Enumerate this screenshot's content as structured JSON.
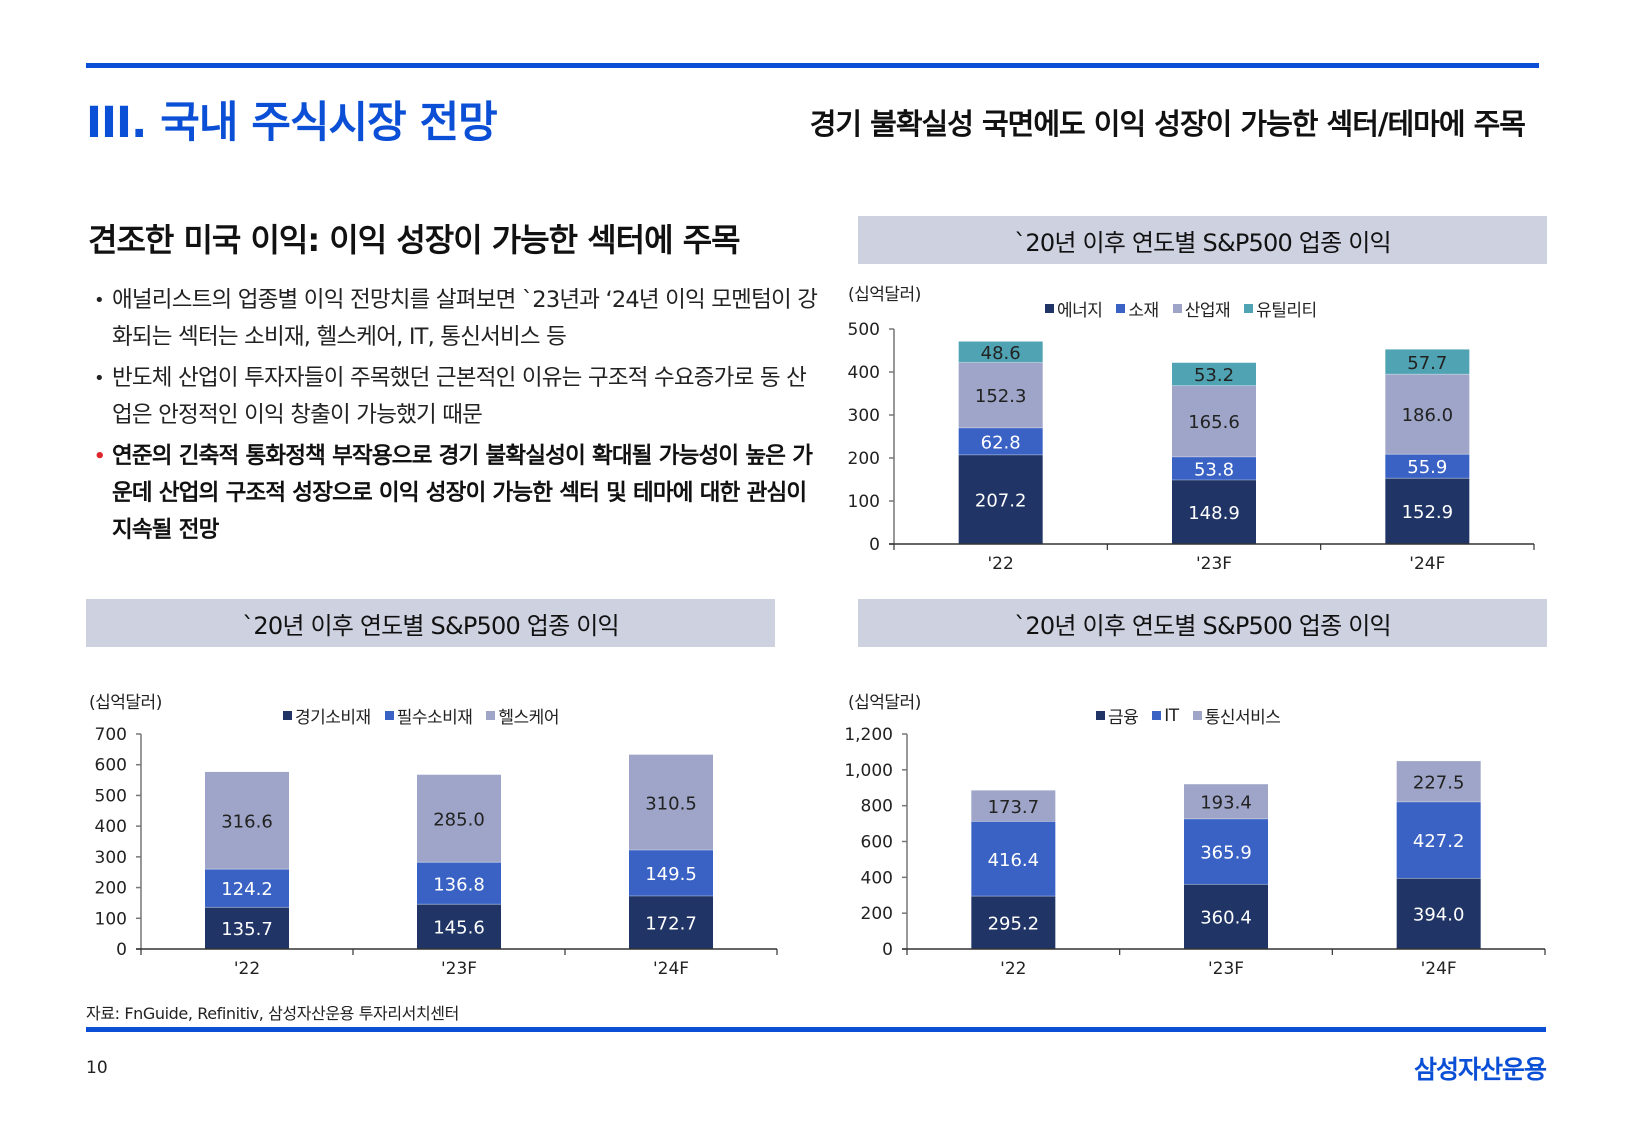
{
  "header": {
    "section_title": "III. 국내 주식시장 전망",
    "subtitle": "경기 불확실성 국면에도 이익 성장이 가능한 섹터/테마에 주목"
  },
  "left": {
    "heading": "견조한 미국 이익: 이익 성장이 가능한 섹터에 주목",
    "bullets": [
      {
        "text": "애널리스트의 업종별 이익 전망치를 살펴보면 `23년과 ‘24년 이익 모멘텀이 강화되는 섹터는 소비재, 헬스케어, IT, 통신서비스 등",
        "emphasis": false
      },
      {
        "text": "반도체 산업이 투자자들이 주목했던 근본적인 이유는 구조적 수요증가로 동 산업은 안정적인 이익 창출이 가능했기 때문",
        "emphasis": false
      },
      {
        "text": "연준의 긴축적 통화정책 부작용으로 경기 불확실성이 확대될 가능성이 높은 가운데 산업의 구조적 성장으로 이익 성장이 가능한 섹터 및 테마에 대한 관심이 지속될 전망",
        "emphasis": true
      }
    ],
    "bullet_glyph": "•"
  },
  "colors": {
    "brand_blue": "#0A4FD6",
    "title_box": "#CDD1E0",
    "series_dark": "#203566",
    "series_mid": "#3A62C4",
    "series_light": "#9EA5C8",
    "series_teal": "#4FA3B3",
    "accent_red": "#E0262D"
  },
  "chart_data": [
    {
      "type": "bar",
      "stacked": true,
      "title": "`20년 이후 연도별 S&P500 업종 이익",
      "unit_label": "(십억달러)",
      "categories": [
        "'22",
        "'23F",
        "'24F"
      ],
      "series": [
        {
          "name": "에너지",
          "values": [
            207.2,
            148.9,
            152.9
          ],
          "labels": [
            "207.2",
            "148.9",
            "152.9"
          ],
          "color": "#203566",
          "label_color": "#ffffff"
        },
        {
          "name": "소재",
          "values": [
            62.8,
            53.8,
            55.9
          ],
          "labels": [
            "62.8",
            "53.8",
            "55.9"
          ],
          "color": "#3A62C4",
          "label_color": "#ffffff"
        },
        {
          "name": "산업재",
          "values": [
            152.3,
            165.6,
            186.0
          ],
          "labels": [
            "152.3",
            "165.6",
            "186.0"
          ],
          "color": "#9EA5C8",
          "label_color": "#222222"
        },
        {
          "name": "유틸리티",
          "values": [
            48.6,
            53.2,
            57.7
          ],
          "labels": [
            "48.6",
            "53.2",
            "57.7"
          ],
          "color": "#4FA3B3",
          "label_color": "#222222"
        }
      ],
      "ylim": [
        0,
        500
      ],
      "yticks": [
        0,
        100,
        200,
        300,
        400,
        500
      ],
      "ytick_labels": [
        "0",
        "100",
        "200",
        "300",
        "400",
        "500"
      ],
      "legend": "top-center",
      "grid": false
    },
    {
      "type": "bar",
      "stacked": true,
      "title": "`20년 이후 연도별 S&P500 업종 이익",
      "unit_label": "(십억달러)",
      "categories": [
        "'22",
        "'23F",
        "'24F"
      ],
      "series": [
        {
          "name": "경기소비재",
          "values": [
            135.7,
            145.6,
            172.7
          ],
          "labels": [
            "135.7",
            "145.6",
            "172.7"
          ],
          "color": "#203566",
          "label_color": "#ffffff"
        },
        {
          "name": "필수소비재",
          "values": [
            124.2,
            136.8,
            149.5
          ],
          "labels": [
            "124.2",
            "136.8",
            "149.5"
          ],
          "color": "#3A62C4",
          "label_color": "#ffffff"
        },
        {
          "name": "헬스케어",
          "values": [
            316.6,
            285.0,
            310.5
          ],
          "labels": [
            "316.6",
            "285.0",
            "310.5"
          ],
          "color": "#9EA5C8",
          "label_color": "#222222"
        }
      ],
      "ylim": [
        0,
        700
      ],
      "yticks": [
        0,
        100,
        200,
        300,
        400,
        500,
        600,
        700
      ],
      "ytick_labels": [
        "0",
        "100",
        "200",
        "300",
        "400",
        "500",
        "600",
        "700"
      ],
      "legend": "top-center",
      "grid": false
    },
    {
      "type": "bar",
      "stacked": true,
      "title": "`20년 이후 연도별 S&P500 업종 이익",
      "unit_label": "(십억달러)",
      "categories": [
        "'22",
        "'23F",
        "'24F"
      ],
      "series": [
        {
          "name": "금융",
          "values": [
            295.2,
            360.4,
            394.0
          ],
          "labels": [
            "295.2",
            "360.4",
            "394.0"
          ],
          "color": "#203566",
          "label_color": "#ffffff"
        },
        {
          "name": "IT",
          "values": [
            416.4,
            365.9,
            427.2
          ],
          "labels": [
            "416.4",
            "365.9",
            "427.2"
          ],
          "color": "#3A62C4",
          "label_color": "#ffffff"
        },
        {
          "name": "통신서비스",
          "values": [
            173.7,
            193.4,
            227.5
          ],
          "labels": [
            "173.7",
            "193.4",
            "227.5"
          ],
          "color": "#9EA5C8",
          "label_color": "#222222"
        }
      ],
      "ylim": [
        0,
        1200
      ],
      "yticks": [
        0,
        200,
        400,
        600,
        800,
        1000,
        1200
      ],
      "ytick_labels": [
        "0",
        "200",
        "400",
        "600",
        "800",
        "1,000",
        "1,200"
      ],
      "legend": "top-center",
      "grid": false
    }
  ],
  "footer": {
    "source": "자료: FnGuide, Refinitiv, 삼성자산운용 투자리서치센터",
    "page_number": "10",
    "brand": "삼성자산운용"
  }
}
